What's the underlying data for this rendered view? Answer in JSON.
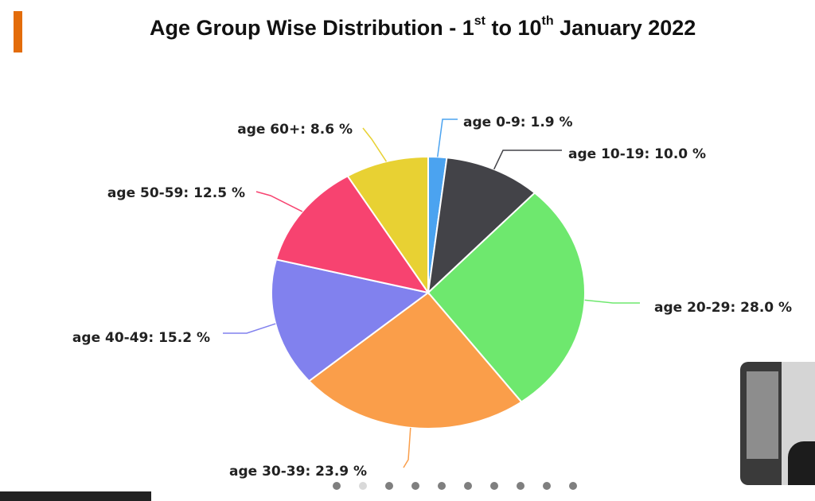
{
  "title": {
    "part1": "Age Group Wise Distribution - 1",
    "sup1": "st",
    "part2": " to 10",
    "sup2": "th",
    "part3": " January 2022"
  },
  "colors": {
    "accent": "#e36c0a"
  },
  "chart_data": {
    "type": "pie",
    "title": "Age Group Wise Distribution - 1st to 10th January 2022",
    "slices": [
      {
        "label": "age 0-9: 1.9 %",
        "value": 1.9,
        "color": "#4ba3f0"
      },
      {
        "label": "age 10-19: 10.0 %",
        "value": 10.0,
        "color": "#434348"
      },
      {
        "label": "age 20-29: 28.0 %",
        "value": 28.0,
        "color": "#6ee86e"
      },
      {
        "label": "age 30-39: 23.9 %",
        "value": 23.9,
        "color": "#fa9e4a"
      },
      {
        "label": "age 40-49: 15.2 %",
        "value": 15.2,
        "color": "#8181ee"
      },
      {
        "label": "age 50-59: 12.5 %",
        "value": 12.5,
        "color": "#f74370"
      },
      {
        "label": "age 60+: 8.6 %",
        "value": 8.6,
        "color": "#e8d133"
      }
    ]
  },
  "slide_dots": {
    "count": 10,
    "active": 2
  }
}
